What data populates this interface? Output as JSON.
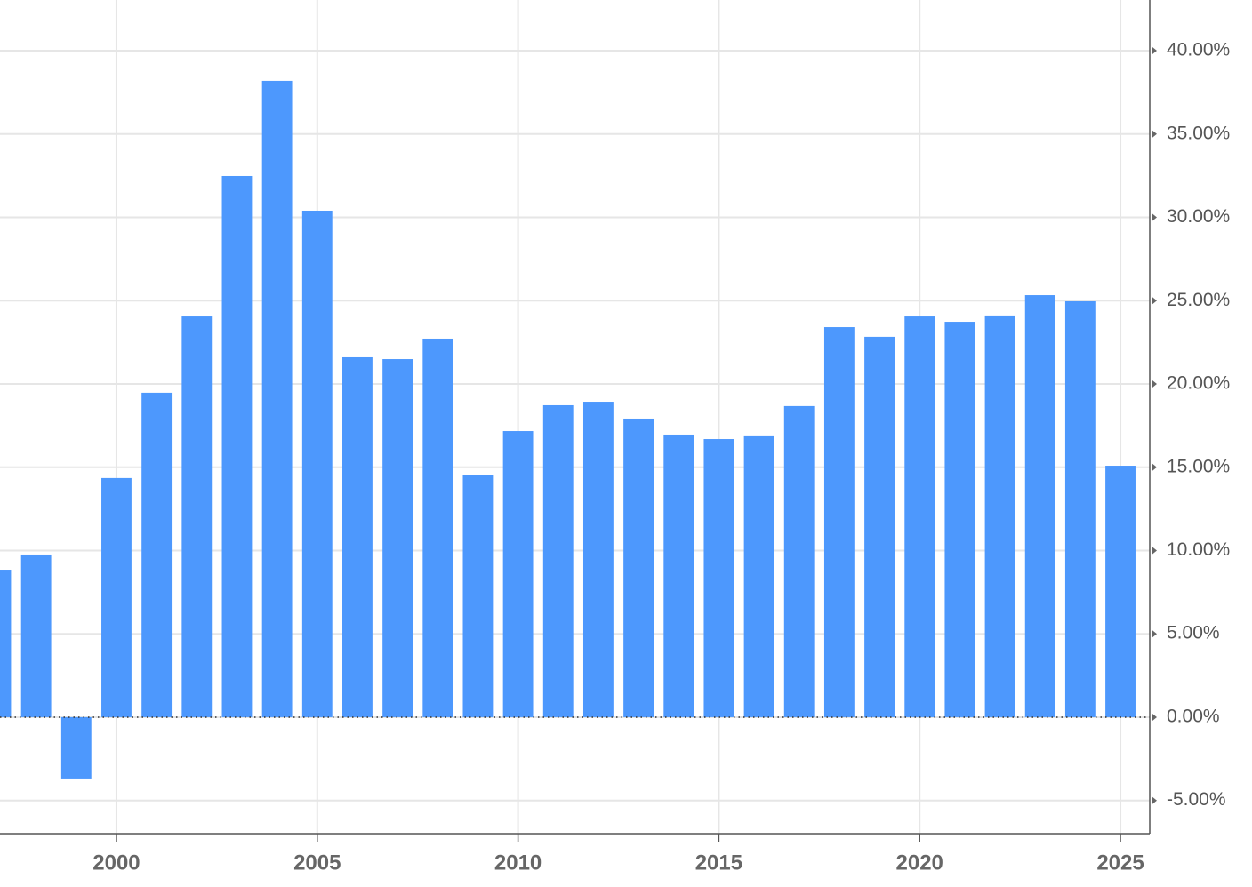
{
  "chart_data": {
    "type": "bar",
    "x": [
      1997,
      1998,
      1999,
      2000,
      2001,
      2002,
      2003,
      2004,
      2005,
      2006,
      2007,
      2008,
      2009,
      2010,
      2011,
      2012,
      2013,
      2014,
      2015,
      2016,
      2017,
      2018,
      2019,
      2020,
      2021,
      2022,
      2023,
      2024,
      2025
    ],
    "values": [
      8.85,
      9.76,
      -3.68,
      14.35,
      19.47,
      24.05,
      32.48,
      38.19,
      30.4,
      21.6,
      21.49,
      22.72,
      14.51,
      17.17,
      18.72,
      18.93,
      17.92,
      16.96,
      16.69,
      16.91,
      18.67,
      23.41,
      22.83,
      24.05,
      23.73,
      24.11,
      25.33,
      24.96,
      15.09
    ],
    "color": "#4d98fd",
    "xlim": [
      1997.1,
      2025.73
    ],
    "xticks": [
      2000,
      2005,
      2010,
      2015,
      2020,
      2025
    ],
    "ylim": [
      -6.99,
      43.04
    ],
    "yticks": [
      {
        "value": -5,
        "label": "-5.00%"
      },
      {
        "value": 0,
        "label": "0.00%"
      },
      {
        "value": 5,
        "label": "5.00%"
      },
      {
        "value": 10,
        "label": "10.00%"
      },
      {
        "value": 15,
        "label": "15.00%"
      },
      {
        "value": 20,
        "label": "20.00%"
      },
      {
        "value": 25,
        "label": "25.00%"
      },
      {
        "value": 30,
        "label": "30.00%"
      },
      {
        "value": 35,
        "label": "35.00%"
      },
      {
        "value": 40,
        "label": "40.00%"
      }
    ],
    "grid": true
  }
}
